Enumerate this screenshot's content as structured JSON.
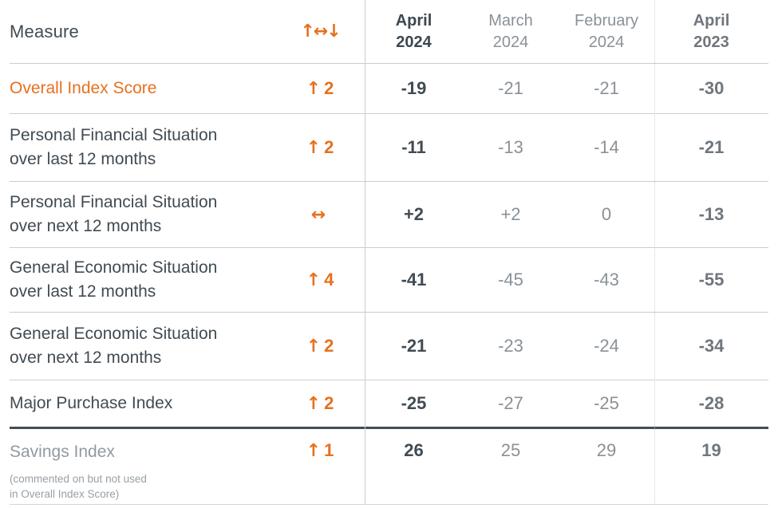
{
  "colors": {
    "accent_orange": "#e8701e",
    "text_dark": "#414b53",
    "text_gray": "#8a9197",
    "text_bold_gray": "#6f767d",
    "text_muted": "#929aa0",
    "row_divider": "#c9cdd1",
    "thick_divider": "#434d55"
  },
  "table": {
    "measure_header": "Measure",
    "trend_header": "↑↔↓",
    "columns": [
      {
        "month": "April",
        "year": "2024",
        "emphasis": "bold-dark"
      },
      {
        "month": "March",
        "year": "2024",
        "emphasis": "regular"
      },
      {
        "month": "February",
        "year": "2024",
        "emphasis": "regular"
      },
      {
        "month": "April",
        "year": "2023",
        "emphasis": "bold-gray"
      }
    ],
    "rows": [
      {
        "label_lines": [
          "Overall Index Score"
        ],
        "style": "orange",
        "trend": {
          "arrow": "↑",
          "value": "2"
        },
        "values": [
          "-19",
          "-21",
          "-21",
          "-30"
        ]
      },
      {
        "label_lines": [
          "Personal Financial Situation",
          "over last 12 months"
        ],
        "style": "normal",
        "trend": {
          "arrow": "↑",
          "value": "2"
        },
        "values": [
          "-11",
          "-13",
          "-14",
          "-21"
        ]
      },
      {
        "label_lines": [
          "Personal Financial Situation",
          "over next 12 months"
        ],
        "style": "normal",
        "trend": {
          "arrow": "↔",
          "value": ""
        },
        "values": [
          "+2",
          "+2",
          "0",
          "-13"
        ]
      },
      {
        "label_lines": [
          "General Economic Situation",
          "over last 12 months"
        ],
        "style": "normal",
        "trend": {
          "arrow": "↑",
          "value": "4"
        },
        "values": [
          "-41",
          "-45",
          "-43",
          "-55"
        ]
      },
      {
        "label_lines": [
          "General Economic Situation",
          "over next 12 months"
        ],
        "style": "normal",
        "trend": {
          "arrow": "↑",
          "value": "2"
        },
        "values": [
          "-21",
          "-23",
          "-24",
          "-34"
        ]
      },
      {
        "label_lines": [
          "Major Purchase Index"
        ],
        "style": "normal",
        "trend": {
          "arrow": "↑",
          "value": "2"
        },
        "values": [
          "-25",
          "-27",
          "-25",
          "-28"
        ]
      },
      {
        "label_lines": [
          "Savings Index"
        ],
        "note_lines": [
          "(commented on but not used",
          "in Overall Index Score)"
        ],
        "style": "savings",
        "trend": {
          "arrow": "↑",
          "value": "1"
        },
        "values": [
          "26",
          "25",
          "29",
          "19"
        ]
      }
    ]
  },
  "chart_data": {
    "type": "table",
    "title": "Consumer confidence index scores by measure",
    "columns": [
      "April 2024",
      "March 2024",
      "February 2024",
      "April 2023"
    ],
    "rows": [
      {
        "measure": "Overall Index Score",
        "trend": "↑2",
        "values": [
          -19,
          -21,
          -21,
          -30
        ]
      },
      {
        "measure": "Personal Financial Situation over last 12 months",
        "trend": "↑2",
        "values": [
          -11,
          -13,
          -14,
          -21
        ]
      },
      {
        "measure": "Personal Financial Situation over next 12 months",
        "trend": "↔",
        "values": [
          2,
          2,
          0,
          -13
        ]
      },
      {
        "measure": "General Economic Situation over last 12 months",
        "trend": "↑4",
        "values": [
          -41,
          -45,
          -43,
          -55
        ]
      },
      {
        "measure": "General Economic Situation over next 12 months",
        "trend": "↑2",
        "values": [
          -21,
          -23,
          -24,
          -34
        ]
      },
      {
        "measure": "Major Purchase Index",
        "trend": "↑2",
        "values": [
          -25,
          -27,
          -25,
          -28
        ]
      },
      {
        "measure": "Savings Index (commented on but not used in Overall Index Score)",
        "trend": "↑1",
        "values": [
          26,
          25,
          29,
          19
        ]
      }
    ]
  }
}
